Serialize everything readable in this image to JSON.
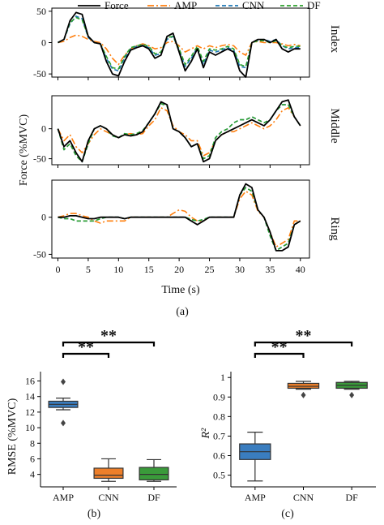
{
  "chart_data": [
    {
      "type": "line",
      "xlabel": "Time (s)",
      "ylabel": "Force (%MVC)",
      "panel_label": "(a)",
      "xlim": [
        -1,
        41.5
      ],
      "xticks": [
        0,
        5,
        10,
        15,
        20,
        25,
        30,
        35,
        40
      ],
      "legend": {
        "placement": "top",
        "entries": [
          "Force",
          "AMP",
          "CNN",
          "DF"
        ]
      },
      "series_styles": [
        {
          "name": "Force",
          "color": "#000000",
          "dash": ""
        },
        {
          "name": "AMP",
          "color": "#ff7f0e",
          "dash": "8,3,2,3"
        },
        {
          "name": "CNN",
          "color": "#1f77b4",
          "dash": "5,3"
        },
        {
          "name": "DF",
          "color": "#2ca02c",
          "dash": "5,3"
        }
      ],
      "panels": [
        {
          "label": "Index",
          "ylim": [
            -55,
            55
          ],
          "yticks": [
            -50,
            0,
            50
          ],
          "x": [
            0,
            1,
            2,
            3,
            4,
            5,
            6,
            7,
            8,
            9,
            10,
            11,
            12,
            13,
            14,
            15,
            16,
            17,
            18,
            19,
            20,
            21,
            22,
            23,
            24,
            25,
            26,
            27,
            28,
            29,
            30,
            31,
            32,
            33,
            34,
            35,
            36,
            37,
            38,
            39,
            40
          ],
          "series": [
            {
              "name": "Force",
              "values": [
                0,
                5,
                35,
                48,
                45,
                10,
                0,
                -2,
                -30,
                -50,
                -53,
                -30,
                -12,
                -8,
                -5,
                -10,
                -25,
                -20,
                10,
                15,
                -15,
                -45,
                -30,
                -10,
                -40,
                -15,
                -20,
                -15,
                -10,
                -15,
                -45,
                -55,
                0,
                5,
                5,
                0,
                5,
                -10,
                -15,
                -10,
                -10
              ]
            },
            {
              "name": "AMP",
              "values": [
                0,
                2,
                8,
                12,
                10,
                5,
                2,
                0,
                -10,
                -25,
                -35,
                -20,
                -10,
                -5,
                -2,
                -5,
                -10,
                -8,
                0,
                2,
                -5,
                -15,
                -10,
                -5,
                -10,
                -5,
                -8,
                -5,
                -3,
                -5,
                -15,
                -20,
                0,
                2,
                0,
                0,
                0,
                -2,
                -5,
                -3,
                -5
              ]
            },
            {
              "name": "CNN",
              "values": [
                0,
                5,
                30,
                42,
                38,
                8,
                0,
                -2,
                -25,
                -42,
                -45,
                -25,
                -10,
                -6,
                -4,
                -8,
                -20,
                -18,
                5,
                10,
                -12,
                -38,
                -25,
                -8,
                -35,
                -12,
                -15,
                -12,
                -8,
                -12,
                -38,
                -40,
                0,
                3,
                5,
                2,
                5,
                -5,
                -10,
                -8,
                -8
              ]
            },
            {
              "name": "DF",
              "values": [
                0,
                5,
                32,
                40,
                36,
                10,
                0,
                -2,
                -22,
                -40,
                -42,
                -22,
                -8,
                -5,
                -3,
                -6,
                -18,
                -15,
                8,
                10,
                -10,
                -35,
                -22,
                -6,
                -30,
                -10,
                -12,
                -10,
                -6,
                -10,
                -35,
                -38,
                0,
                3,
                3,
                0,
                3,
                -5,
                -8,
                -6,
                -6
              ]
            }
          ]
        },
        {
          "label": "Middle",
          "ylim": [
            -60,
            55
          ],
          "yticks": [
            -50,
            0
          ],
          "x": [
            0,
            1,
            2,
            3,
            4,
            5,
            6,
            7,
            8,
            9,
            10,
            11,
            12,
            13,
            14,
            15,
            16,
            17,
            18,
            19,
            20,
            21,
            22,
            23,
            24,
            25,
            26,
            27,
            28,
            29,
            30,
            31,
            32,
            33,
            34,
            35,
            36,
            37,
            38,
            39,
            40
          ],
          "series": [
            {
              "name": "Force",
              "values": [
                0,
                -30,
                -20,
                -40,
                -55,
                -20,
                0,
                5,
                0,
                -10,
                -15,
                -10,
                -12,
                -10,
                -5,
                10,
                25,
                45,
                40,
                0,
                -5,
                -15,
                -30,
                -25,
                -55,
                -50,
                -20,
                -10,
                -5,
                0,
                5,
                10,
                15,
                10,
                5,
                15,
                30,
                45,
                48,
                20,
                5
              ]
            },
            {
              "name": "AMP",
              "values": [
                0,
                -20,
                -10,
                -30,
                -40,
                -25,
                -10,
                0,
                -5,
                -10,
                -15,
                -10,
                -8,
                -10,
                -8,
                5,
                15,
                35,
                30,
                5,
                -5,
                -10,
                -20,
                -20,
                -45,
                -40,
                -20,
                -10,
                -5,
                -5,
                0,
                5,
                10,
                5,
                0,
                5,
                15,
                30,
                35,
                20,
                5
              ]
            },
            {
              "name": "CNN",
              "values": [
                0,
                -35,
                -25,
                -45,
                -55,
                -25,
                0,
                5,
                0,
                -12,
                -15,
                -8,
                -10,
                -8,
                -3,
                10,
                25,
                42,
                38,
                0,
                -5,
                -15,
                -30,
                -25,
                -50,
                -45,
                -15,
                -5,
                0,
                10,
                15,
                15,
                20,
                15,
                10,
                15,
                30,
                40,
                40,
                20,
                5
              ]
            },
            {
              "name": "DF",
              "values": [
                0,
                -35,
                -25,
                -45,
                -55,
                -25,
                0,
                5,
                0,
                -12,
                -15,
                -8,
                -10,
                -8,
                -3,
                10,
                25,
                42,
                38,
                0,
                -5,
                -15,
                -30,
                -25,
                -50,
                -45,
                -15,
                -5,
                0,
                10,
                15,
                15,
                20,
                15,
                10,
                15,
                30,
                40,
                40,
                20,
                5
              ]
            }
          ]
        },
        {
          "label": "Ring",
          "ylim": [
            -55,
            50
          ],
          "yticks": [
            -50,
            0
          ],
          "x": [
            0,
            1,
            2,
            3,
            4,
            5,
            6,
            7,
            8,
            9,
            10,
            11,
            12,
            13,
            14,
            15,
            16,
            17,
            18,
            19,
            20,
            21,
            22,
            23,
            24,
            25,
            26,
            27,
            28,
            29,
            30,
            31,
            32,
            33,
            34,
            35,
            36,
            37,
            38,
            39,
            40
          ],
          "series": [
            {
              "name": "Force",
              "values": [
                0,
                0,
                2,
                2,
                0,
                -2,
                -2,
                0,
                0,
                0,
                0,
                -2,
                0,
                0,
                0,
                0,
                0,
                0,
                0,
                0,
                0,
                0,
                -5,
                -10,
                -5,
                0,
                0,
                0,
                0,
                0,
                30,
                45,
                40,
                10,
                0,
                -20,
                -45,
                -45,
                -40,
                -10,
                -5
              ]
            },
            {
              "name": "AMP",
              "values": [
                0,
                2,
                5,
                5,
                2,
                0,
                -5,
                -8,
                -5,
                -5,
                -5,
                -5,
                0,
                0,
                0,
                0,
                0,
                0,
                0,
                5,
                10,
                8,
                0,
                -5,
                -5,
                0,
                0,
                0,
                0,
                0,
                25,
                35,
                30,
                8,
                0,
                -20,
                -40,
                -35,
                -30,
                -5,
                -5
              ]
            },
            {
              "name": "CNN",
              "values": [
                0,
                -2,
                -2,
                -5,
                -5,
                -5,
                -5,
                -2,
                0,
                0,
                0,
                -2,
                0,
                0,
                0,
                0,
                0,
                0,
                0,
                0,
                0,
                0,
                -3,
                -5,
                -3,
                0,
                0,
                0,
                0,
                0,
                30,
                40,
                35,
                10,
                0,
                -25,
                -45,
                -40,
                -35,
                -10,
                -5
              ]
            },
            {
              "name": "DF",
              "values": [
                0,
                -2,
                -2,
                -5,
                -5,
                -5,
                -5,
                -2,
                0,
                0,
                0,
                -2,
                0,
                0,
                0,
                0,
                0,
                0,
                0,
                0,
                0,
                0,
                -3,
                -5,
                -3,
                0,
                0,
                0,
                0,
                0,
                30,
                40,
                35,
                10,
                0,
                -25,
                -45,
                -40,
                -35,
                -10,
                -5
              ]
            }
          ]
        }
      ]
    },
    {
      "type": "box",
      "panel_label": "(b)",
      "ylabel": "RMSE (%MVC)",
      "ylim": [
        2.4,
        17.2
      ],
      "yticks": [
        4,
        6,
        8,
        10,
        12,
        14,
        16
      ],
      "categories": [
        "AMP",
        "CNN",
        "DF"
      ],
      "boxes": [
        {
          "category": "AMP",
          "color": "#3a7dbf",
          "whisker_low": 12.3,
          "q1": 12.6,
          "median": 13.0,
          "q3": 13.4,
          "whisker_high": 13.8,
          "outliers": [
            10.6,
            15.9
          ]
        },
        {
          "category": "CNN",
          "color": "#ee7f2a",
          "whisker_low": 3.1,
          "q1": 3.5,
          "median": 3.9,
          "q3": 4.8,
          "whisker_high": 6.0,
          "outliers": []
        },
        {
          "category": "DF",
          "color": "#3a9a3a",
          "whisker_low": 3.1,
          "q1": 3.3,
          "median": 4.0,
          "q3": 4.9,
          "whisker_high": 5.9,
          "outliers": []
        }
      ],
      "significance": [
        {
          "from": "AMP",
          "to": "CNN",
          "label": "**"
        },
        {
          "from": "AMP",
          "to": "DF",
          "label": "**"
        }
      ]
    },
    {
      "type": "box",
      "panel_label": "(c)",
      "ylabel": "R²",
      "ylim": [
        0.44,
        1.03
      ],
      "yticks": [
        0.5,
        0.6,
        0.7,
        0.8,
        0.9,
        1.0
      ],
      "categories": [
        "AMP",
        "CNN",
        "DF"
      ],
      "boxes": [
        {
          "category": "AMP",
          "color": "#3a7dbf",
          "whisker_low": 0.47,
          "q1": 0.58,
          "median": 0.62,
          "q3": 0.66,
          "whisker_high": 0.72,
          "outliers": []
        },
        {
          "category": "CNN",
          "color": "#ee7f2a",
          "whisker_low": 0.94,
          "q1": 0.945,
          "median": 0.955,
          "q3": 0.97,
          "whisker_high": 0.98,
          "outliers": [
            0.91
          ]
        },
        {
          "category": "DF",
          "color": "#3a9a3a",
          "whisker_low": 0.94,
          "q1": 0.945,
          "median": 0.96,
          "q3": 0.975,
          "whisker_high": 0.98,
          "outliers": [
            0.91
          ]
        }
      ],
      "significance": [
        {
          "from": "AMP",
          "to": "CNN",
          "label": "**"
        },
        {
          "from": "AMP",
          "to": "DF",
          "label": "**"
        }
      ]
    }
  ]
}
